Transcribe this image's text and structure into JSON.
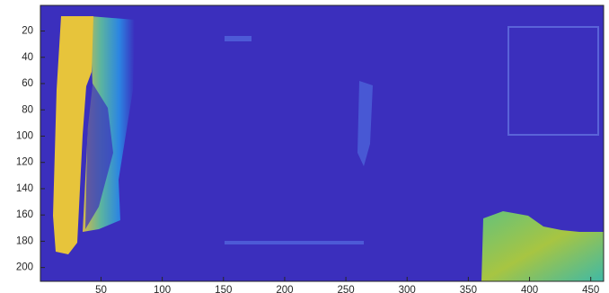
{
  "chart_data": {
    "type": "image",
    "background_color": "#3b2fbd",
    "xlim": [
      0.5,
      460.5
    ],
    "ylim": [
      0.5,
      210.5
    ],
    "y_reversed": true,
    "xticks": [
      50,
      100,
      150,
      200,
      250,
      300,
      350,
      400,
      450
    ],
    "yticks": [
      20,
      40,
      60,
      80,
      100,
      120,
      140,
      160,
      180,
      200
    ]
  }
}
